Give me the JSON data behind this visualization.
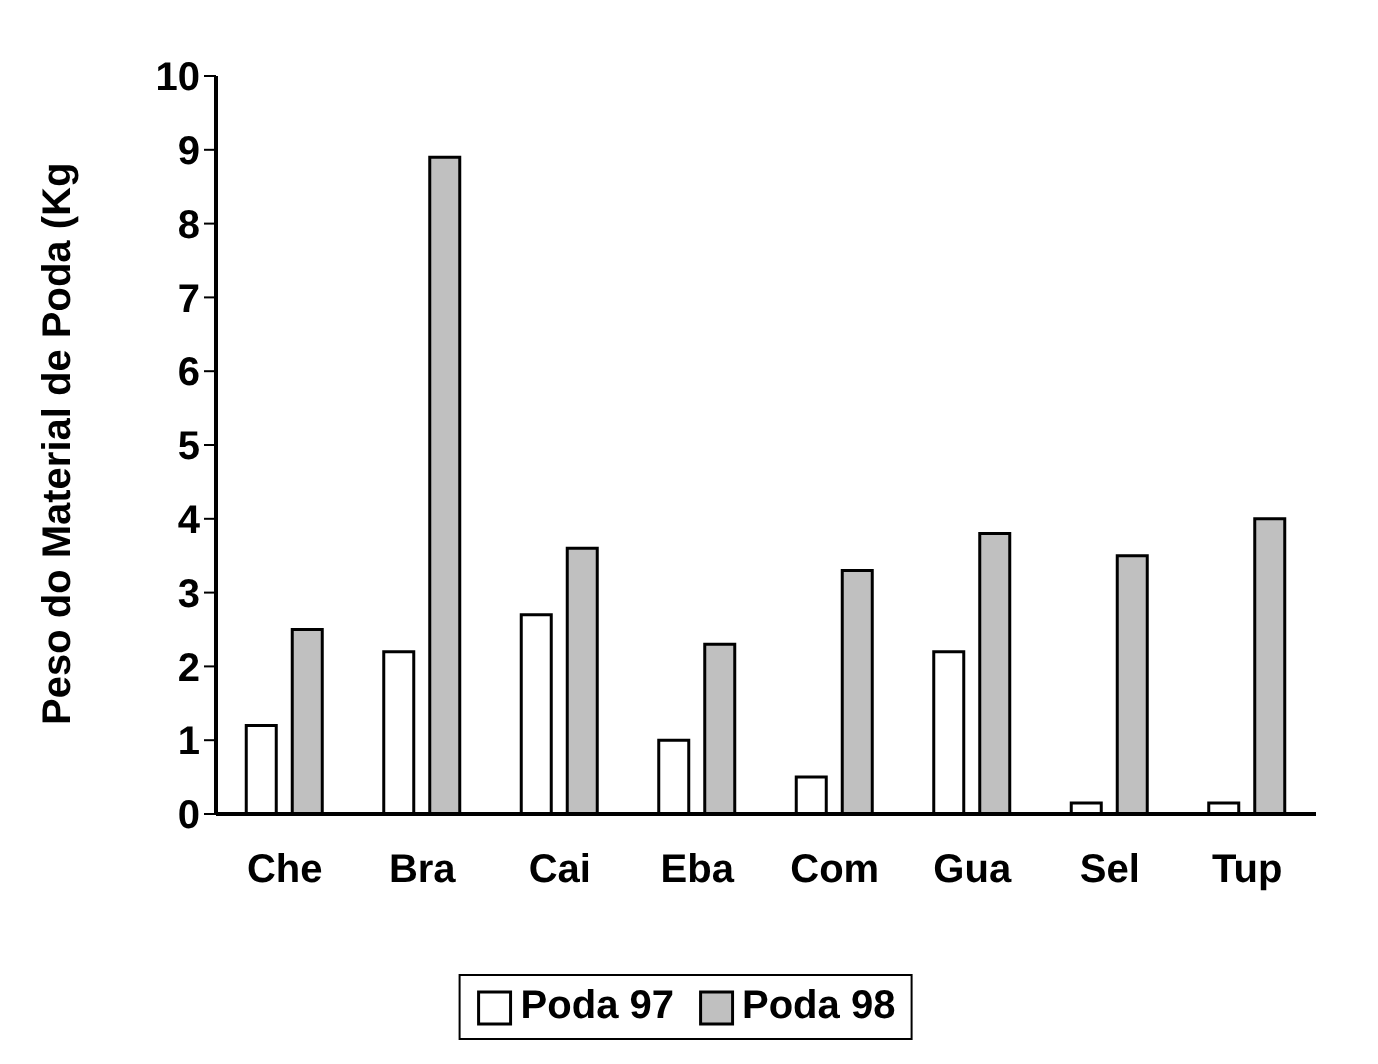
{
  "chart_data": {
    "type": "bar",
    "ylabel": "Peso do Material de Poda (Kg",
    "categories": [
      "Che",
      "Bra",
      "Cai",
      "Eba",
      "Com",
      "Gua",
      "Sel",
      "Tup"
    ],
    "series": [
      {
        "name": "Poda 97",
        "color": "#ffffff",
        "values": [
          1.2,
          2.2,
          2.7,
          1.0,
          0.5,
          2.2,
          0.15,
          0.15
        ]
      },
      {
        "name": "Poda 98",
        "color": "#c0c0c0",
        "values": [
          2.5,
          8.9,
          3.6,
          2.3,
          3.3,
          3.8,
          3.5,
          4.0
        ]
      }
    ],
    "ylim": [
      0,
      10
    ],
    "yticks": [
      0,
      1,
      2,
      3,
      4,
      5,
      6,
      7,
      8,
      9,
      10
    ],
    "grid": false,
    "legend": "bottom"
  }
}
